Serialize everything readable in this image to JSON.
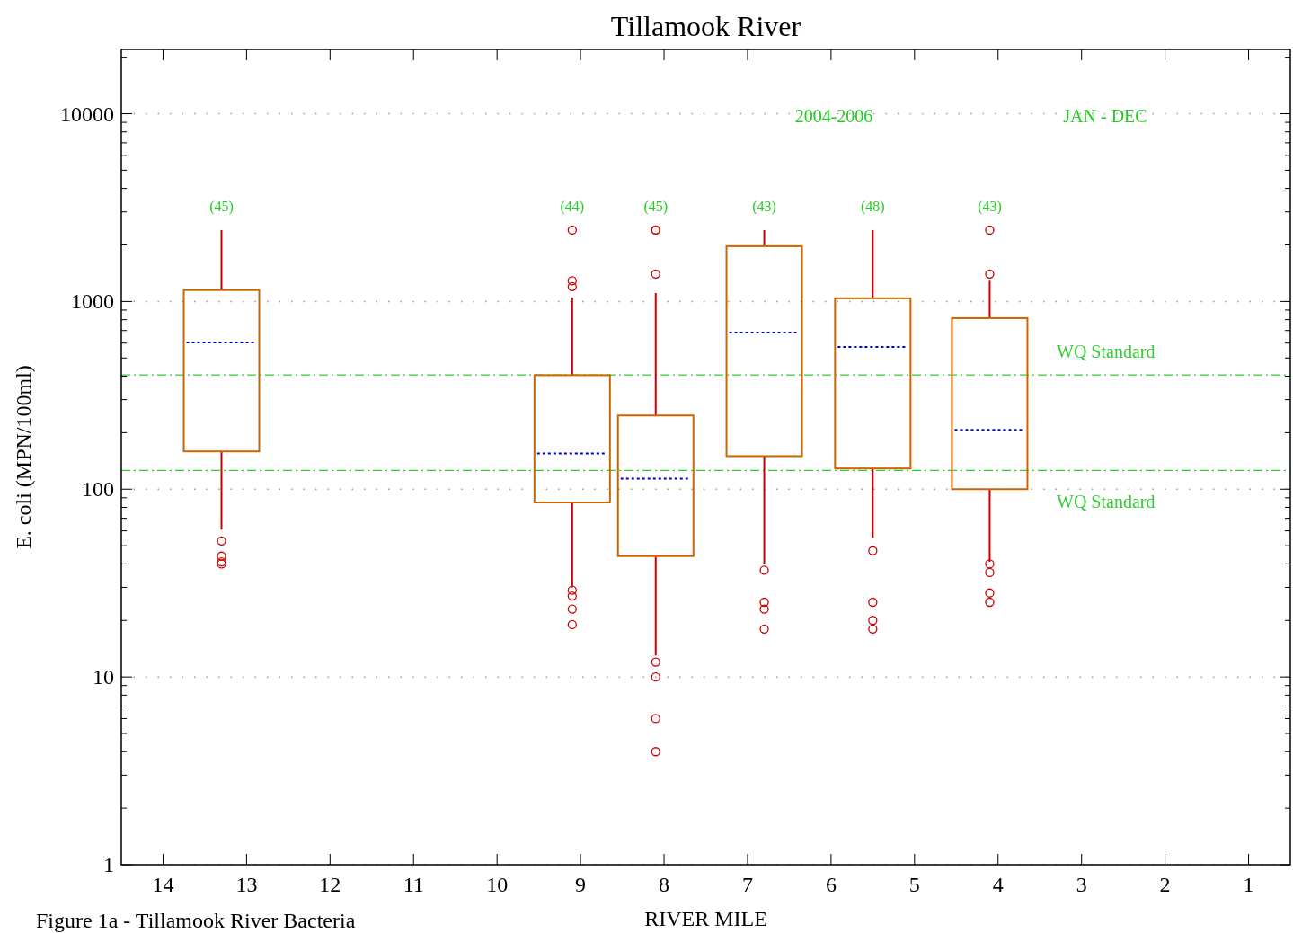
{
  "chart_data": {
    "type": "box",
    "title": "Tillamook River",
    "xlabel": "RIVER MILE",
    "ylabel": "E. coli (MPN/100ml)",
    "x": [
      13.3,
      9.1,
      8.1,
      6.8,
      5.5,
      4.1
    ],
    "color": "#cc6600",
    "boxes": [
      {
        "low": 61,
        "q1": 159,
        "median": 605,
        "q3": 1150,
        "high": 2400,
        "outliers": [
          53,
          44,
          41,
          40
        ]
      },
      {
        "low": 30,
        "q1": 85,
        "median": 155,
        "q3": 405,
        "high": 1050,
        "outliers": [
          2400,
          1290,
          1200,
          29,
          27,
          23,
          19
        ]
      },
      {
        "low": 13,
        "q1": 44,
        "median": 114,
        "q3": 247,
        "high": 1110,
        "outliers": [
          2400,
          2400,
          1400,
          12,
          10,
          6,
          4
        ]
      },
      {
        "low": 40,
        "q1": 150,
        "median": 683,
        "q3": 1970,
        "high": 2400,
        "outliers": [
          37,
          25,
          23,
          18
        ]
      },
      {
        "low": 55,
        "q1": 129,
        "median": 573,
        "q3": 1040,
        "high": 2400,
        "outliers": [
          47,
          25,
          20,
          18
        ]
      },
      {
        "low": 41,
        "q1": 100,
        "median": 207,
        "q3": 815,
        "high": 1290,
        "outliers": [
          2400,
          1400,
          40,
          36,
          28,
          25
        ]
      }
    ],
    "log": "y",
    "xlim": [
      14.5,
      0.5
    ],
    "xticks": [
      14,
      13,
      12,
      11,
      10,
      9,
      8,
      7,
      6,
      5,
      4,
      3,
      2,
      1
    ],
    "ylim": [
      1,
      22000
    ],
    "yticks": [
      1,
      {
        "value": 2,
        "label": null
      },
      {
        "value": 3,
        "label": null
      },
      {
        "value": 4,
        "label": null
      },
      {
        "value": 5,
        "label": null
      },
      {
        "value": 6,
        "label": null
      },
      {
        "value": 7,
        "label": null
      },
      {
        "value": 8,
        "label": null
      },
      {
        "value": 9,
        "label": null
      },
      10,
      {
        "value": 20,
        "label": null
      },
      {
        "value": 30,
        "label": null
      },
      {
        "value": 40,
        "label": null
      },
      {
        "value": 50,
        "label": null
      },
      {
        "value": 60,
        "label": null
      },
      {
        "value": 70,
        "label": null
      },
      {
        "value": 80,
        "label": null
      },
      {
        "value": 90,
        "label": null
      },
      100,
      {
        "value": 200,
        "label": null
      },
      {
        "value": 300,
        "label": null
      },
      {
        "value": 400,
        "label": null
      },
      {
        "value": 500,
        "label": null
      },
      {
        "value": 600,
        "label": null
      },
      {
        "value": 700,
        "label": null
      },
      {
        "value": 800,
        "label": null
      },
      {
        "value": 900,
        "label": null
      },
      1000,
      {
        "value": 2000,
        "label": null
      },
      {
        "value": 3000,
        "label": null
      },
      {
        "value": 4000,
        "label": null
      },
      {
        "value": 5000,
        "label": null
      },
      {
        "value": 6000,
        "label": null
      },
      {
        "value": 7000,
        "label": null
      },
      {
        "value": 8000,
        "label": null
      },
      {
        "value": 9000,
        "label": null
      },
      10000,
      {
        "value": 20000,
        "label": null
      }
    ],
    "grid": "y",
    "ref_lines": [
      {
        "axis": "y",
        "value": 406,
        "label": "WQ Standard",
        "color": "#33cc33",
        "line_style": "dashdot"
      },
      {
        "axis": "y",
        "value": 126,
        "label": "WQ Standard",
        "color": "#33cc33",
        "line_style": "dashdot"
      }
    ],
    "annotations": [
      "(45)",
      "(44)",
      "(45)",
      "(43)",
      "(48)",
      "(43)",
      "2004-2006",
      "JAN - DEC",
      "Figure 1a - Tillamook River Bacteria"
    ]
  }
}
